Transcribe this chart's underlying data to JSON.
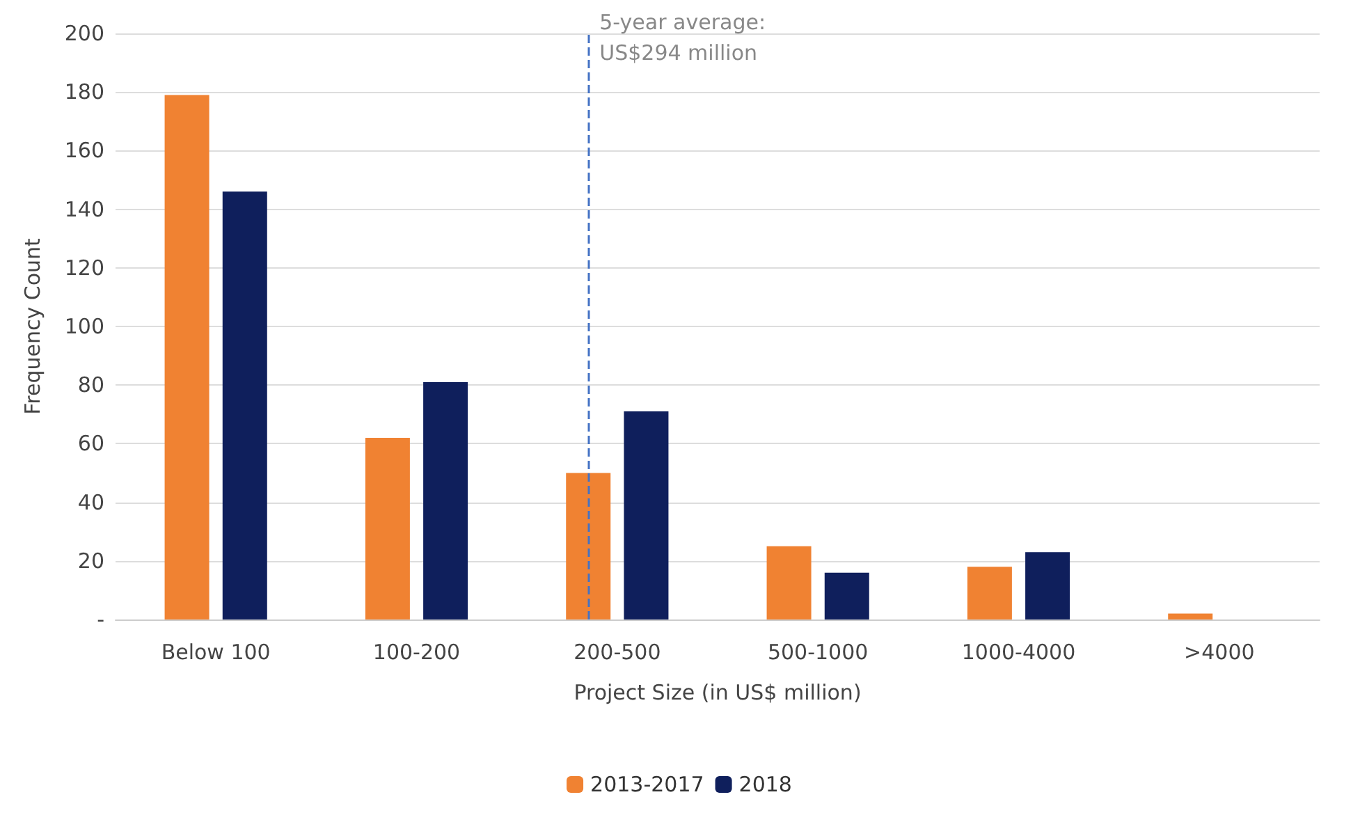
{
  "chart_data": {
    "type": "bar",
    "xlabel": "Project Size (in US$ million)",
    "ylabel": "Frequency Count",
    "categories": [
      "Below 100",
      "100-200",
      "200-500",
      "500-1000",
      "1000-4000",
      ">4000"
    ],
    "series": [
      {
        "name": "2013-2017",
        "color": "#f08232",
        "values": [
          179,
          62,
          50,
          25,
          18,
          2
        ]
      },
      {
        "name": "2018",
        "color": "#0f1f5c",
        "values": [
          146,
          81,
          71,
          16,
          23,
          0
        ]
      }
    ],
    "ylim": [
      0,
      200
    ],
    "yticks": [
      {
        "value": 0,
        "label": "-"
      },
      20,
      40,
      60,
      80,
      100,
      120,
      140,
      160,
      180,
      200
    ],
    "grid": "y",
    "legend": "bottom",
    "ref_lines": [
      {
        "axis": "x",
        "value": "200-500",
        "label": "5-year average: US$294 million",
        "color": "#4472c4",
        "line_style": "dashed"
      }
    ]
  }
}
